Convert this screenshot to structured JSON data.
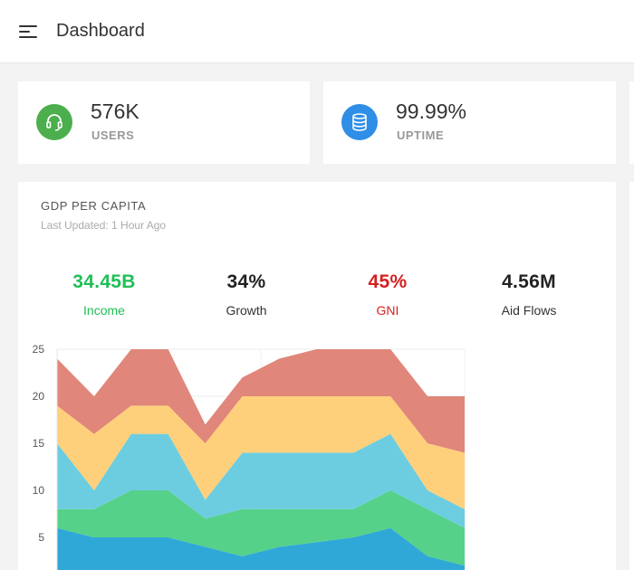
{
  "header": {
    "title": "Dashboard",
    "menu_icon": "menu-icon"
  },
  "stats": [
    {
      "value": "576K",
      "label": "USERS",
      "icon": "headset-icon",
      "color": "#4cae4c"
    },
    {
      "value": "99.99%",
      "label": "UPTIME",
      "icon": "database-icon",
      "color": "#2f8ee6"
    }
  ],
  "gdp": {
    "title": "GDP PER CAPITA",
    "subtitle": "Last Updated: 1 Hour Ago",
    "metrics": [
      {
        "value": "34.45B",
        "label": "Income",
        "color": "#1fbf57",
        "label_color": "#1fbf57"
      },
      {
        "value": "34%",
        "label": "Growth",
        "color": "#222222",
        "label_color": "#333333"
      },
      {
        "value": "45%",
        "label": "GNI",
        "color": "#d61f1f",
        "label_color": "#d61f1f"
      },
      {
        "value": "4.56M",
        "label": "Aid Flows",
        "color": "#222222",
        "label_color": "#333333"
      }
    ]
  },
  "chart_data": {
    "type": "area",
    "stacked": true,
    "x": [
      0,
      1,
      2,
      3,
      4,
      5,
      6,
      7,
      8,
      9,
      10,
      11
    ],
    "ylim": [
      0,
      25
    ],
    "yticks": [
      "5",
      "10",
      "15",
      "20",
      "25"
    ],
    "grid": true,
    "colors": [
      "#2fa8d8",
      "#55d189",
      "#6ccde0",
      "#ffd07b",
      "#e0867a"
    ],
    "series": [
      {
        "values": [
          6,
          5,
          5,
          5,
          4,
          3,
          4,
          4.5,
          5,
          6,
          3,
          2
        ]
      },
      {
        "values": [
          2,
          3,
          5,
          5,
          3,
          5,
          4,
          3.5,
          3,
          4,
          5,
          4
        ]
      },
      {
        "values": [
          7,
          2,
          6,
          6,
          2,
          6,
          6,
          6,
          6,
          6,
          2,
          2
        ]
      },
      {
        "values": [
          4,
          6,
          3,
          3,
          6,
          6,
          6,
          6,
          6,
          4,
          5,
          6
        ]
      },
      {
        "values": [
          5,
          4,
          6,
          6,
          2,
          2,
          4,
          5,
          5,
          5,
          5,
          6
        ]
      }
    ]
  }
}
